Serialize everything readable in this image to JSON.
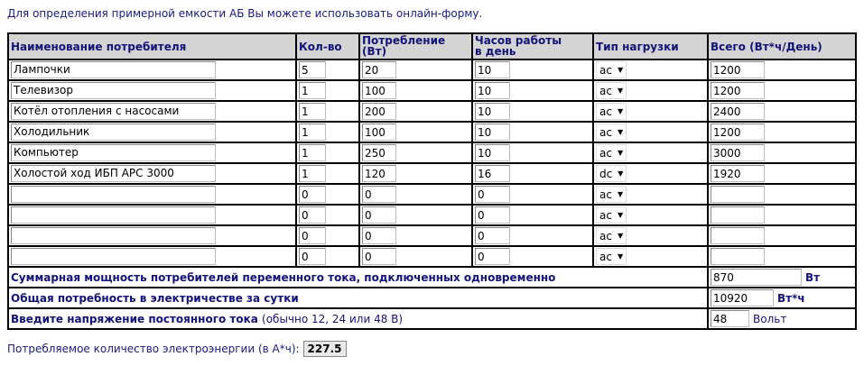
{
  "intro": "Для определения примерной емкости АБ Вы можете использовать онлайн-форму.",
  "headers": {
    "name": "Наименование потребителя",
    "qty": "Кол-во",
    "power_1": "Потребление",
    "power_2": "(Вт)",
    "hours_1": "Часов работы",
    "hours_2": "в день",
    "type": "Тип нагрузки",
    "total": "Всего (Вт*ч/День)"
  },
  "rows": [
    {
      "name": "Лампочки",
      "qty": "5",
      "power": "20",
      "hours": "10",
      "type": "ac",
      "total": "1200"
    },
    {
      "name": "Телевизор",
      "qty": "1",
      "power": "100",
      "hours": "10",
      "type": "ac",
      "total": "1200"
    },
    {
      "name": "Котёл отопления с насосами",
      "qty": "1",
      "power": "200",
      "hours": "10",
      "type": "ac",
      "total": "2400"
    },
    {
      "name": "Холодильник",
      "qty": "1",
      "power": "100",
      "hours": "10",
      "type": "ac",
      "total": "1200"
    },
    {
      "name": "Компьютер",
      "qty": "1",
      "power": "250",
      "hours": "10",
      "type": "ac",
      "total": "3000"
    },
    {
      "name": "Холостой ход ИБП APC 3000",
      "qty": "1",
      "power": "120",
      "hours": "16",
      "type": "dc",
      "total": "1920"
    },
    {
      "name": "",
      "qty": "0",
      "power": "0",
      "hours": "0",
      "type": "ac",
      "total": ""
    },
    {
      "name": "",
      "qty": "0",
      "power": "0",
      "hours": "0",
      "type": "ac",
      "total": ""
    },
    {
      "name": "",
      "qty": "0",
      "power": "0",
      "hours": "0",
      "type": "ac",
      "total": ""
    },
    {
      "name": "",
      "qty": "0",
      "power": "0",
      "hours": "0",
      "type": "ac",
      "total": ""
    }
  ],
  "summary": {
    "ac_power_label": "Суммарная мощность потребителей переменного тока, подключенных одновременно",
    "ac_power_value": "870",
    "ac_power_unit": "Вт",
    "daily_label": "Общая потребность в электричестве за сутки",
    "daily_value": "10920",
    "daily_unit": "Вт*ч",
    "voltage_label": "Введите напряжение постоянного тока",
    "voltage_note": "(обычно 12, 24 или 48 В)",
    "voltage_value": "48",
    "voltage_unit": "Вольт"
  },
  "result": {
    "label": "Потребляемое количество электроэнергии (в А*ч):",
    "value": "227.5"
  }
}
